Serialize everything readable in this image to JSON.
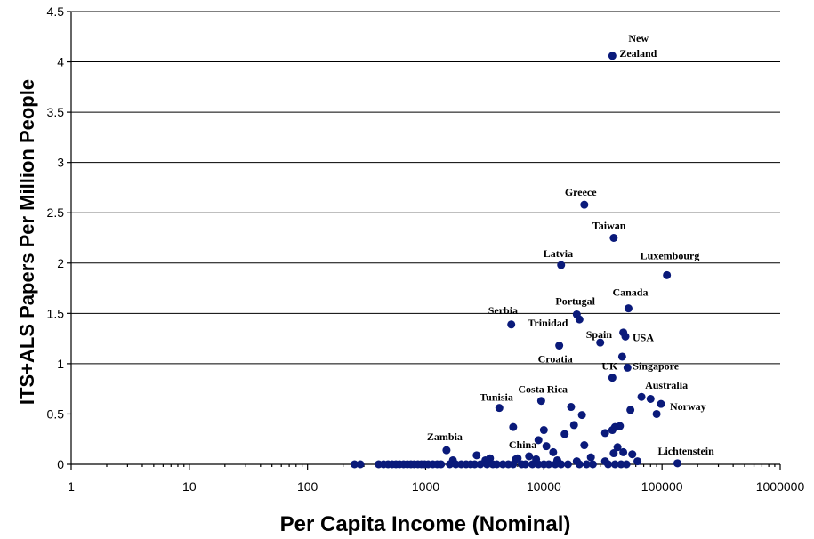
{
  "chart_data": {
    "type": "scatter",
    "title": "",
    "xlabel": "Per Capita Income (Nominal)",
    "ylabel": "ITS+ALS  Papers Per Million People",
    "xscale": "log",
    "xlim": [
      1,
      1000000
    ],
    "ylim": [
      0,
      4.5
    ],
    "x_ticks": [
      "1",
      "10",
      "100",
      "1000",
      "10000",
      "100000",
      "1000000"
    ],
    "y_ticks": [
      "0",
      "0.5",
      "1",
      "1.5",
      "2",
      "2.5",
      "3",
      "3.5",
      "4",
      "4.5"
    ],
    "grid": "horizontal",
    "marker_color": "#0a1a7a",
    "labeled_points": [
      {
        "label": "New Zealand",
        "x": 38000,
        "y": 4.06
      },
      {
        "label": "Greece",
        "x": 22000,
        "y": 2.58
      },
      {
        "label": "Taiwan",
        "x": 39000,
        "y": 2.25
      },
      {
        "label": "Latvia",
        "x": 14000,
        "y": 1.98
      },
      {
        "label": "Luxembourg",
        "x": 110000,
        "y": 1.88
      },
      {
        "label": "Canada",
        "x": 52000,
        "y": 1.55
      },
      {
        "label": "Portugal",
        "x": 19000,
        "y": 1.49
      },
      {
        "label": "Serbia",
        "x": 5300,
        "y": 1.39
      },
      {
        "label": "Trinidad",
        "x": 20000,
        "y": 1.44
      },
      {
        "label": "USA",
        "x": 49000,
        "y": 1.27
      },
      {
        "label": "Spain",
        "x": 30000,
        "y": 1.21
      },
      {
        "label": "Croatia",
        "x": 13500,
        "y": 1.18
      },
      {
        "label": "Singapore",
        "x": 51000,
        "y": 0.96
      },
      {
        "label": "UK",
        "x": 38000,
        "y": 0.86
      },
      {
        "label": "Australia",
        "x": 67000,
        "y": 0.67
      },
      {
        "label": "Norway",
        "x": 98000,
        "y": 0.6
      },
      {
        "label": "Costa Rica",
        "x": 9500,
        "y": 0.63
      },
      {
        "label": "Tunisia",
        "x": 4200,
        "y": 0.56
      },
      {
        "label": "Zambia",
        "x": 1500,
        "y": 0.14
      },
      {
        "label": "China",
        "x": 6000,
        "y": 0.06
      },
      {
        "label": "Lichtenstein",
        "x": 135000,
        "y": 0.01
      }
    ],
    "other_points": [
      {
        "x": 47000,
        "y": 1.31
      },
      {
        "x": 46000,
        "y": 1.07
      },
      {
        "x": 17000,
        "y": 0.57
      },
      {
        "x": 21000,
        "y": 0.49
      },
      {
        "x": 54000,
        "y": 0.54
      },
      {
        "x": 80000,
        "y": 0.65
      },
      {
        "x": 90000,
        "y": 0.5
      },
      {
        "x": 5500,
        "y": 0.37
      },
      {
        "x": 10000,
        "y": 0.34
      },
      {
        "x": 15000,
        "y": 0.3
      },
      {
        "x": 9000,
        "y": 0.24
      },
      {
        "x": 18000,
        "y": 0.39
      },
      {
        "x": 33000,
        "y": 0.31
      },
      {
        "x": 38000,
        "y": 0.34
      },
      {
        "x": 40000,
        "y": 0.37
      },
      {
        "x": 44000,
        "y": 0.38
      },
      {
        "x": 10500,
        "y": 0.18
      },
      {
        "x": 22000,
        "y": 0.19
      },
      {
        "x": 42000,
        "y": 0.17
      },
      {
        "x": 12000,
        "y": 0.12
      },
      {
        "x": 39000,
        "y": 0.11
      },
      {
        "x": 47000,
        "y": 0.12
      },
      {
        "x": 56000,
        "y": 0.1
      },
      {
        "x": 2700,
        "y": 0.09
      },
      {
        "x": 3500,
        "y": 0.06
      },
      {
        "x": 7500,
        "y": 0.08
      },
      {
        "x": 25000,
        "y": 0.07
      },
      {
        "x": 1700,
        "y": 0.04
      },
      {
        "x": 3200,
        "y": 0.04
      },
      {
        "x": 5800,
        "y": 0.05
      },
      {
        "x": 8600,
        "y": 0.05
      },
      {
        "x": 13000,
        "y": 0.04
      },
      {
        "x": 19000,
        "y": 0.03
      },
      {
        "x": 33000,
        "y": 0.03
      },
      {
        "x": 62000,
        "y": 0.03
      },
      {
        "x": 250,
        "y": 0
      },
      {
        "x": 280,
        "y": 0
      },
      {
        "x": 400,
        "y": 0
      },
      {
        "x": 440,
        "y": 0
      },
      {
        "x": 480,
        "y": 0
      },
      {
        "x": 520,
        "y": 0
      },
      {
        "x": 560,
        "y": 0
      },
      {
        "x": 600,
        "y": 0
      },
      {
        "x": 650,
        "y": 0
      },
      {
        "x": 700,
        "y": 0
      },
      {
        "x": 750,
        "y": 0
      },
      {
        "x": 800,
        "y": 0
      },
      {
        "x": 860,
        "y": 0
      },
      {
        "x": 920,
        "y": 0
      },
      {
        "x": 980,
        "y": 0
      },
      {
        "x": 1050,
        "y": 0
      },
      {
        "x": 1150,
        "y": 0
      },
      {
        "x": 1250,
        "y": 0
      },
      {
        "x": 1350,
        "y": 0
      },
      {
        "x": 1600,
        "y": 0
      },
      {
        "x": 1800,
        "y": 0
      },
      {
        "x": 2000,
        "y": 0
      },
      {
        "x": 2200,
        "y": 0
      },
      {
        "x": 2400,
        "y": 0
      },
      {
        "x": 2600,
        "y": 0
      },
      {
        "x": 2900,
        "y": 0
      },
      {
        "x": 3300,
        "y": 0
      },
      {
        "x": 3700,
        "y": 0
      },
      {
        "x": 4000,
        "y": 0
      },
      {
        "x": 4500,
        "y": 0
      },
      {
        "x": 5000,
        "y": 0
      },
      {
        "x": 5500,
        "y": 0
      },
      {
        "x": 6500,
        "y": 0
      },
      {
        "x": 7000,
        "y": 0
      },
      {
        "x": 8000,
        "y": 0
      },
      {
        "x": 9000,
        "y": 0
      },
      {
        "x": 10000,
        "y": 0
      },
      {
        "x": 11000,
        "y": 0
      },
      {
        "x": 12500,
        "y": 0
      },
      {
        "x": 14000,
        "y": 0
      },
      {
        "x": 16000,
        "y": 0
      },
      {
        "x": 20000,
        "y": 0
      },
      {
        "x": 23000,
        "y": 0
      },
      {
        "x": 26000,
        "y": 0
      },
      {
        "x": 35000,
        "y": 0
      },
      {
        "x": 40000,
        "y": 0
      },
      {
        "x": 45000,
        "y": 0
      },
      {
        "x": 50000,
        "y": 0
      }
    ]
  }
}
